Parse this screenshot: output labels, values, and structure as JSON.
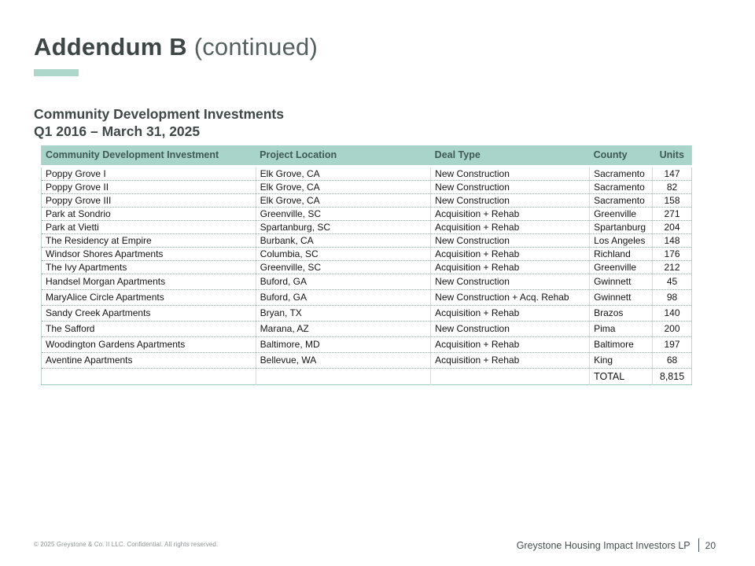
{
  "slide": {
    "title_main": "Addendum B",
    "title_suffix": " (continued)",
    "subtitle_line1": "Community Development Investments",
    "subtitle_line2": "Q1 2016 – March 31, 2025",
    "footer": {
      "copyright": "© 2025 Greystone & Co. II LLC. Confidential. All rights reserved.",
      "company": "Greystone Housing Impact Investors LP",
      "page_number": "20"
    }
  },
  "colors": {
    "header_bg": "#a9d4ca",
    "accent_bar": "#aed7cc",
    "header_text": "#3d5a53",
    "title_text": "#3e4545",
    "title_suffix_text": "#576060",
    "body_text": "#141414"
  },
  "table": {
    "columns": [
      "Community Development Investment",
      "Project Location",
      "Deal Type",
      "County",
      "Units"
    ],
    "rows": [
      [
        "Poppy Grove I",
        "Elk Grove, CA",
        "New Construction",
        "Sacramento",
        "147"
      ],
      [
        "Poppy Grove II",
        "Elk Grove, CA",
        "New Construction",
        "Sacramento",
        "82"
      ],
      [
        "Poppy Grove III",
        "Elk Grove, CA",
        "New Construction",
        "Sacramento",
        "158"
      ],
      [
        "Park at Sondrio",
        "Greenville, SC",
        "Acquisition + Rehab",
        "Greenville",
        "271"
      ],
      [
        "Park at Vietti",
        "Spartanburg, SC",
        "Acquisition + Rehab",
        "Spartanburg",
        "204"
      ],
      [
        "The Residency at Empire",
        "Burbank, CA",
        "New Construction",
        "Los Angeles",
        "148"
      ],
      [
        "Windsor Shores Apartments",
        "Columbia, SC",
        "Acquisition + Rehab",
        "Richland",
        "176"
      ],
      [
        "The Ivy Apartments",
        "Greenville, SC",
        "Acquisition + Rehab",
        "Greenville",
        "212"
      ],
      [
        "Handsel Morgan Apartments",
        "Buford, GA",
        "New Construction",
        "Gwinnett",
        "45"
      ],
      [
        "MaryAlice Circle Apartments",
        "Buford, GA",
        "New Construction + Acq. Rehab",
        "Gwinnett",
        "98"
      ],
      [
        "Sandy Creek Apartments",
        "Bryan, TX",
        "Acquisition + Rehab",
        "Brazos",
        "140"
      ],
      [
        "The Safford",
        "Marana, AZ",
        "New Construction",
        "Pima",
        "200"
      ],
      [
        "Woodington Gardens Apartments",
        "Baltimore, MD",
        "Acquisition + Rehab",
        "Baltimore",
        "197"
      ],
      [
        "Aventine Apartments",
        "Bellevue, WA",
        "Acquisition + Rehab",
        "King",
        "68"
      ]
    ],
    "total_label": "TOTAL",
    "total_value": "8,815"
  }
}
